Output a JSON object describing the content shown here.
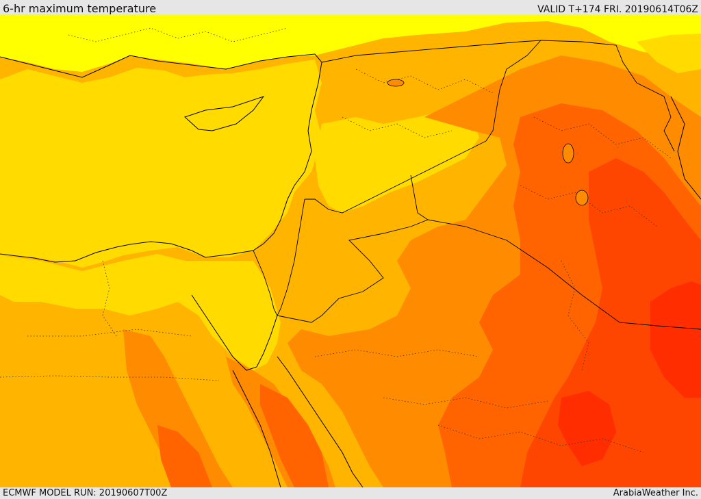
{
  "header": {
    "title": "6-hr maximum temperature",
    "valid": "VALID T+174 FRI. 20190614T06Z"
  },
  "footer": {
    "model_run": "ECMWF MODEL RUN: 20190607T00Z",
    "brand": "ArabiaWeather Inc."
  },
  "palette": {
    "band_1": "#ffff00",
    "band_2": "#ffdb00",
    "band_3": "#ffb400",
    "band_4": "#ff8c00",
    "band_5": "#ff6400",
    "band_6": "#ff4600",
    "band_7": "#ff2d00",
    "border_line": "#000000",
    "sea": "#ffdb00"
  }
}
